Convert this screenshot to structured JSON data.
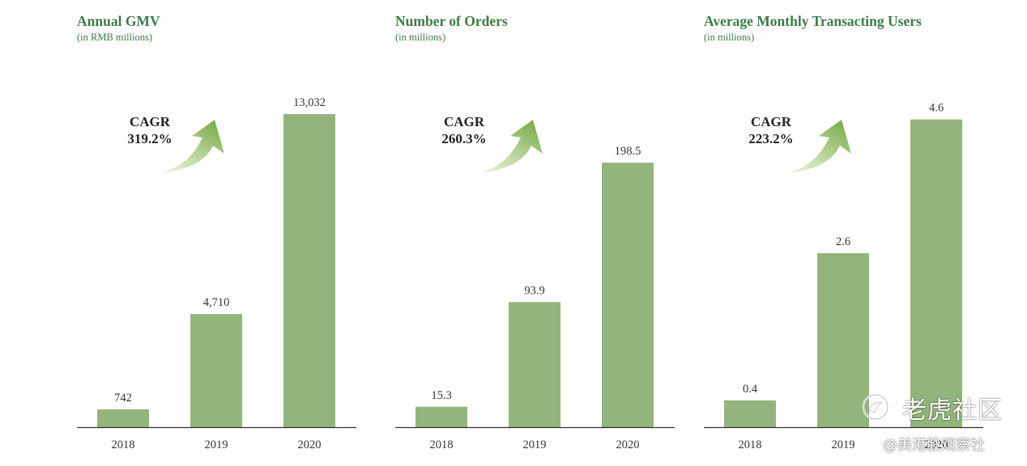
{
  "chart_data": [
    {
      "type": "bar",
      "title": "Annual GMV",
      "subtitle": "(in RMB millions)",
      "categories": [
        "2018",
        "2019",
        "2020"
      ],
      "values": [
        742,
        4710,
        13032
      ],
      "value_labels": [
        "742",
        "4,710",
        "13,032"
      ],
      "ylim": [
        0,
        13032
      ],
      "annotation": {
        "label": "CAGR",
        "value": "319.2%"
      },
      "bar_color": "#93b47c"
    },
    {
      "type": "bar",
      "title": "Number of Orders",
      "subtitle": "(in millions)",
      "categories": [
        "2018",
        "2019",
        "2020"
      ],
      "values": [
        15.3,
        93.9,
        198.5
      ],
      "value_labels": [
        "15.3",
        "93.9",
        "198.5"
      ],
      "ylim": [
        0,
        235
      ],
      "annotation": {
        "label": "CAGR",
        "value": "260.3%"
      },
      "bar_color": "#93b47c"
    },
    {
      "type": "bar",
      "title": "Average Monthly Transacting Users",
      "subtitle": "(in millions)",
      "categories": [
        "2018",
        "2019",
        "2020"
      ],
      "values": [
        0.4,
        2.6,
        4.6
      ],
      "value_labels": [
        "0.4",
        "2.6",
        "4.6"
      ],
      "ylim": [
        0,
        4.68
      ],
      "annotation": {
        "label": "CAGR",
        "value": "223.2%"
      },
      "bar_color": "#93b47c"
    }
  ],
  "watermark": {
    "name": "老虎社区",
    "handle": "@美港股观察社",
    "icon": "tiger-logo-icon"
  },
  "colors": {
    "title": "#3d7a45",
    "bar": "#93b47c",
    "arrow": "#6fa640",
    "axis": "#333333"
  }
}
